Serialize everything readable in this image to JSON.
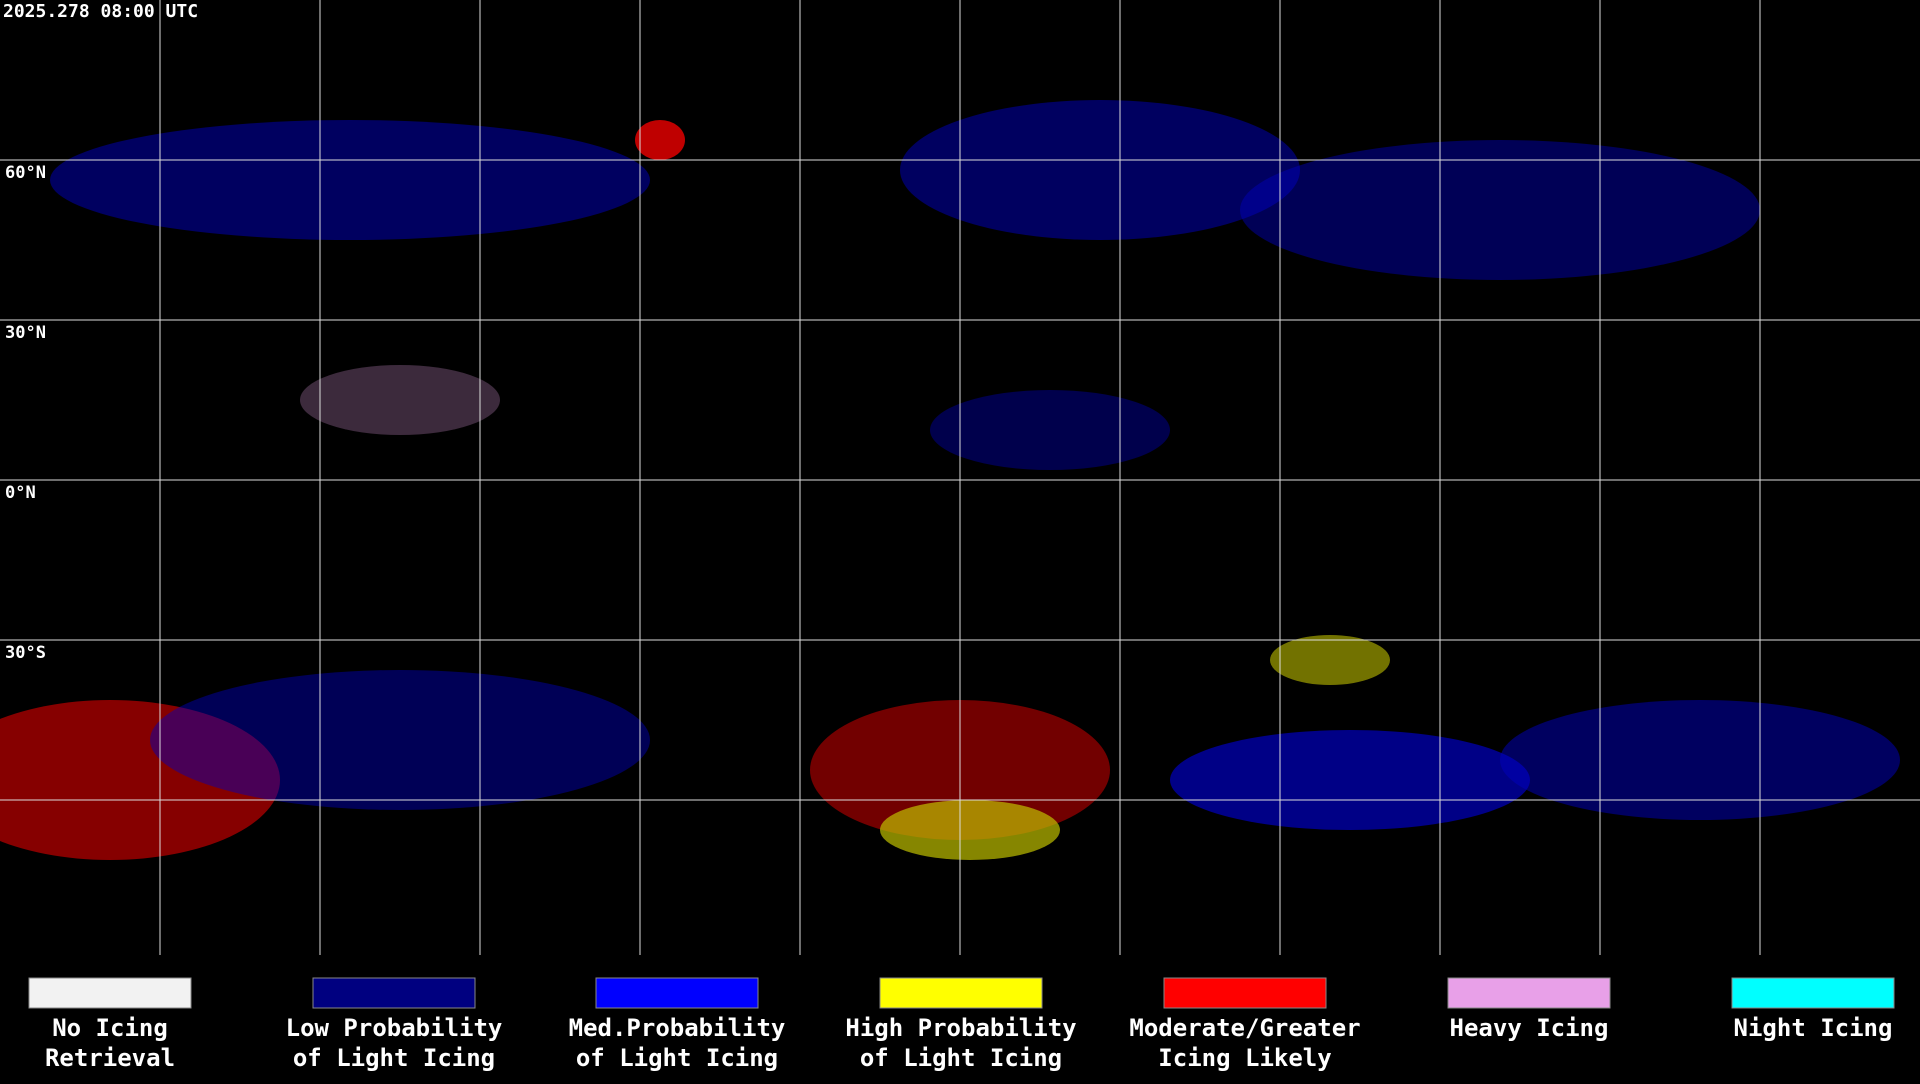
{
  "header": {
    "timestamp": "2025.278 08:00 UTC"
  },
  "map": {
    "lat_labels": [
      "60°N",
      "30°N",
      "0°N",
      "30°S"
    ]
  },
  "legend": [
    {
      "color": "#f2f2f2",
      "lines": [
        "No Icing",
        "Retrieval"
      ]
    },
    {
      "color": "#000080",
      "lines": [
        "Low Probability",
        "of Light Icing"
      ]
    },
    {
      "color": "#0000ff",
      "lines": [
        "Med.Probability",
        "of Light Icing"
      ]
    },
    {
      "color": "#ffff00",
      "lines": [
        "High Probability",
        "of Light Icing"
      ]
    },
    {
      "color": "#ff0000",
      "lines": [
        "Moderate/Greater",
        "Icing Likely"
      ]
    },
    {
      "color": "#e8a0e8",
      "lines": [
        "Heavy Icing"
      ]
    },
    {
      "color": "#00ffff",
      "lines": [
        "Night Icing"
      ]
    }
  ]
}
